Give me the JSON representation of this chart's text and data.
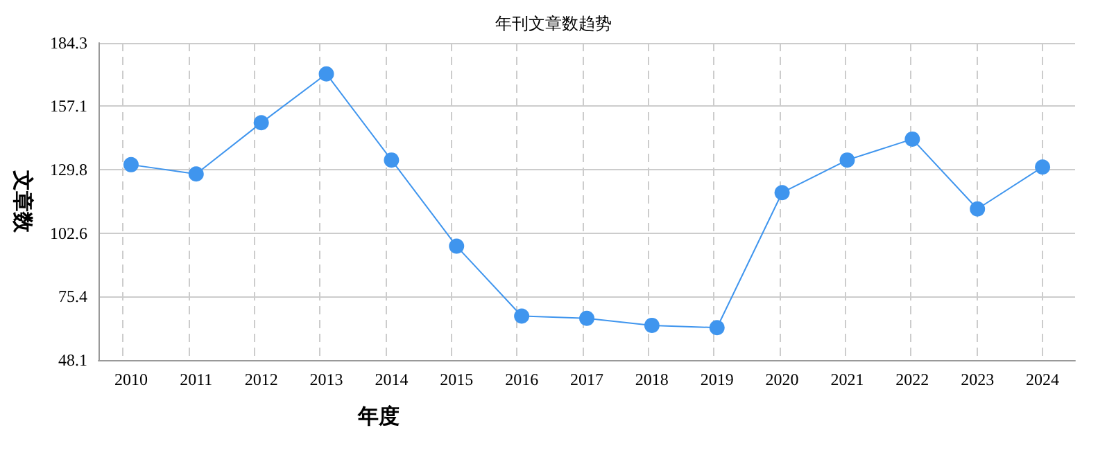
{
  "chart_data": {
    "type": "line",
    "title": "年刊文章数趋势",
    "xlabel": "年度",
    "ylabel": "文章数",
    "categories": [
      "2010",
      "2011",
      "2012",
      "2013",
      "2014",
      "2015",
      "2016",
      "2017",
      "2018",
      "2019",
      "2020",
      "2021",
      "2022",
      "2023",
      "2024"
    ],
    "series": [
      {
        "color": "#3f95ee",
        "values": [
          132,
          128,
          150,
          171,
          134,
          97,
          67,
          66,
          63,
          62,
          120,
          134,
          143,
          113,
          131
        ]
      }
    ],
    "ylim": [
      48.1,
      184.3
    ],
    "yticks": [
      48.1,
      75.4,
      102.6,
      129.8,
      157.1,
      184.3
    ],
    "grid": true,
    "marker": "circle",
    "line_style": "solid"
  }
}
